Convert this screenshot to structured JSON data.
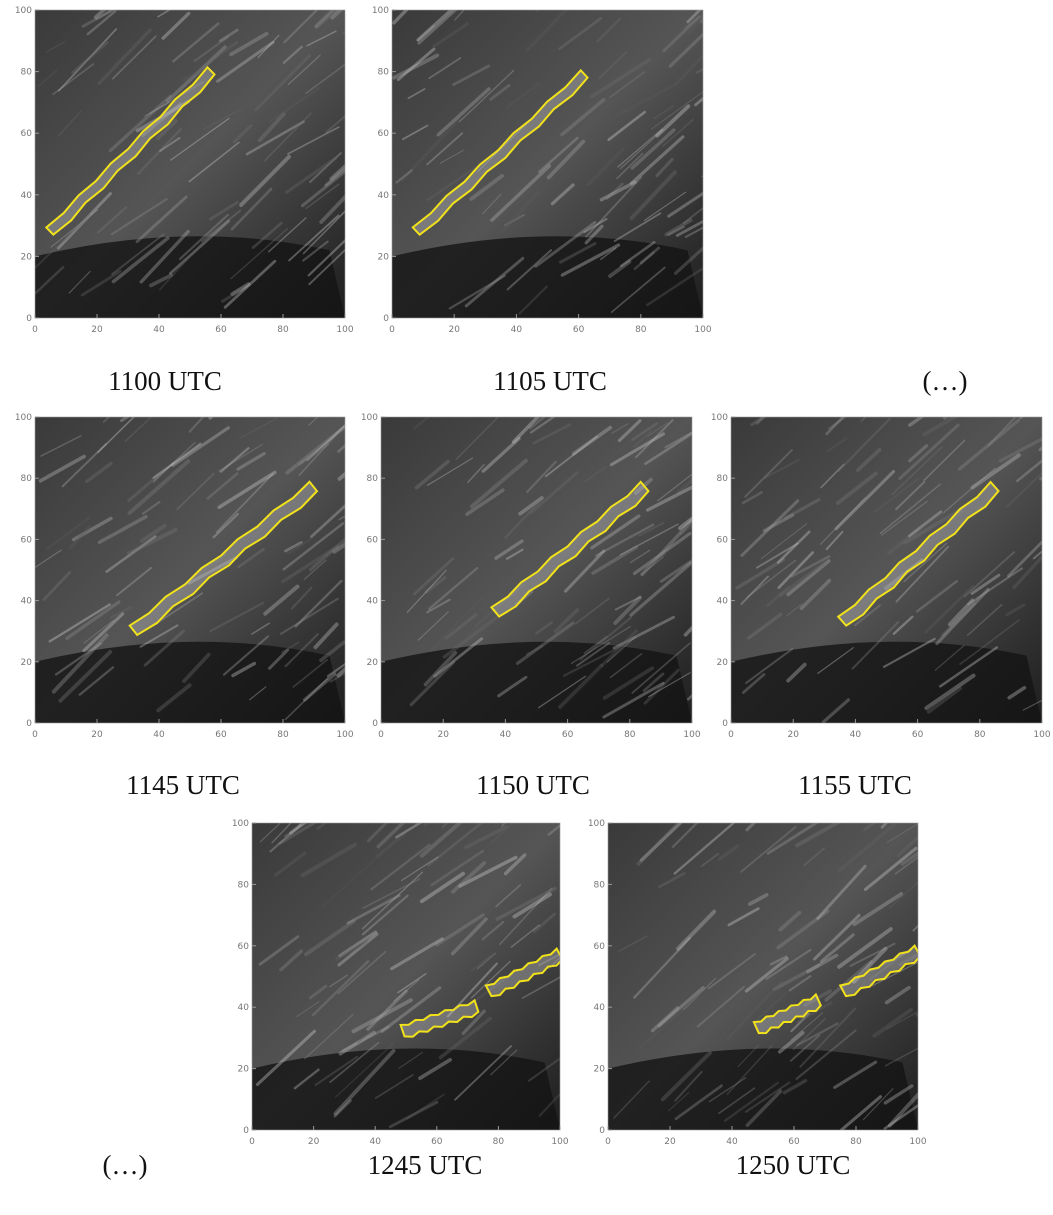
{
  "axes": {
    "xlim": [
      0,
      100
    ],
    "ylim": [
      0,
      100
    ],
    "xticks": [
      0,
      20,
      40,
      60,
      80,
      100
    ],
    "yticks": [
      0,
      20,
      40,
      60,
      80,
      100
    ]
  },
  "panels": [
    {
      "caption": "1100 UTC"
    },
    {
      "caption": "1105 UTC"
    },
    {
      "caption": "1145 UTC"
    },
    {
      "caption": "1150 UTC"
    },
    {
      "caption": "1155 UTC"
    },
    {
      "caption": "1245 UTC"
    },
    {
      "caption": "1250 UTC"
    }
  ],
  "ellipses": [
    "(…)",
    "(…)"
  ]
}
